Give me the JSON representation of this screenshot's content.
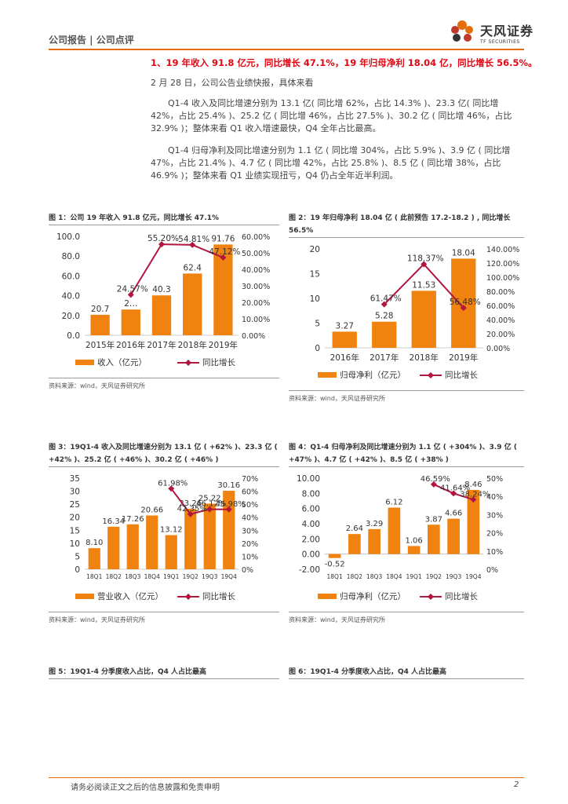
{
  "header": {
    "section": "公司报告 | 公司点评",
    "brand_cn": "天风证券",
    "brand_en": "TF SECURITIES",
    "accent": "#e46c0a"
  },
  "headline": "1、19 年收入 91.8 亿元，同比增长 47.1%，19 年归母净利 18.04 亿，同比增长 56.5%。",
  "paragraphs": [
    "2 月 28 日，公司公告业绩快报，具体来看",
    "Q1-4 收入及同比增速分别为 13.1 亿( 同比增 62%，占比 14.3% )、23.3 亿( 同比增 42%，占比 25.4% )、25.2 亿 ( 同比增 46%，占比 27.5% )、30.2 亿 ( 同比增 46%，占比 32.9% )；整体来看 Q1 收入增速最快，Q4 全年占比最高。",
    "Q1-4 归母净利及同比增速分别为 1.1 亿 ( 同比增 304%，占比 5.9% )、3.9 亿 ( 同比增 47%，占比 21.4% )、4.7 亿 ( 同比增 42%，占比 25.8% )、8.5 亿 ( 同比增 38%，占比 46.9% )；整体来看 Q1 业绩实现扭亏，Q4 仍占全年近半利润。"
  ],
  "figures": [
    {
      "title": "图 1：公司 19 年收入 91.8 亿元，同比增长 47.1%",
      "source": "资料来源：wind，天风证券研究所"
    },
    {
      "title": "图 2：19 年归母净利 18.04 亿 ( 此前预告 17.2-18.2 ) , 同比增长 56.5%",
      "source": "资料来源：wind，天风证券研究所"
    },
    {
      "title": "图 3：19Q1-4 收入及同比增速分别为 13.1 亿 ( +62% )、23.3 亿 ( +42% )、25.2 亿 ( +46% )、30.2 亿 ( +46% )",
      "source": "资料来源：wind，天风证券研究所"
    },
    {
      "title": "图 4：Q1-4 归母净利及同比增速分别为 1.1 亿 ( +304% )、3.9 亿 ( +47% )、4.7 亿 ( +42% )、8.5 亿 ( +38% )",
      "source": "资料来源：wind，天风证券研究所"
    },
    {
      "title": "图 5：19Q1-4 分季度收入占比，Q4 人占比最高",
      "source": ""
    },
    {
      "title": "图 6：19Q1-4 分季度收入占比，Q4 人占比最高",
      "source": ""
    }
  ],
  "chart_data": [
    {
      "type": "bar",
      "categories": [
        "2015年",
        "2016年",
        "2017年",
        "2018年",
        "2019年"
      ],
      "series": [
        {
          "name": "收入（亿元）",
          "axis": "left",
          "kind": "bar",
          "values": [
            20.7,
            26.0,
            40.3,
            62.4,
            91.76
          ],
          "labels": [
            "20.7",
            "2…",
            "40.3",
            "62.4",
            "91.76"
          ]
        },
        {
          "name": "同比增长",
          "axis": "right",
          "kind": "line",
          "values": [
            null,
            24.57,
            55.2,
            54.81,
            47.12
          ],
          "labels": [
            "",
            "24.57%",
            "55.20%",
            "54.81%",
            "47.12%"
          ]
        }
      ],
      "ylim_left": [
        0,
        100
      ],
      "yticks_left": [
        "0.0",
        "20.0",
        "40.0",
        "60.0",
        "80.0",
        "100.0"
      ],
      "ylim_right": [
        0,
        60
      ],
      "yticks_right": [
        "0.00%",
        "10.00%",
        "20.00%",
        "30.00%",
        "40.00%",
        "50.00%",
        "60.00%"
      ],
      "bar_color": "#f0820f",
      "line_color": "#b0163e",
      "legend": [
        "收入（亿元）",
        "同比增长"
      ]
    },
    {
      "type": "bar",
      "categories": [
        "2016年",
        "2017年",
        "2018年",
        "2019年"
      ],
      "series": [
        {
          "name": "归母净利（亿元）",
          "axis": "left",
          "kind": "bar",
          "values": [
            3.27,
            5.28,
            11.53,
            18.04
          ],
          "labels": [
            "3.27",
            "5.28",
            "11.53",
            "18.04"
          ]
        },
        {
          "name": "同比增长",
          "axis": "right",
          "kind": "line",
          "values": [
            null,
            61.47,
            118.37,
            56.48
          ],
          "labels": [
            "",
            "61.47%",
            "118.37%",
            "56.48%"
          ]
        }
      ],
      "ylim_left": [
        0,
        20
      ],
      "yticks_left": [
        "0",
        "5",
        "10",
        "15",
        "20"
      ],
      "ylim_right": [
        0,
        140
      ],
      "yticks_right": [
        "0.00%",
        "20.00%",
        "40.00%",
        "60.00%",
        "80.00%",
        "100.00%",
        "120.00%",
        "140.00%"
      ],
      "bar_color": "#f0820f",
      "line_color": "#b0163e",
      "legend": [
        "归母净利（亿元）",
        "同比增长"
      ]
    },
    {
      "type": "bar",
      "categories": [
        "18Q1",
        "18Q2",
        "18Q3",
        "18Q4",
        "19Q1",
        "19Q2",
        "19Q3",
        "19Q4"
      ],
      "series": [
        {
          "name": "营业收入（亿元）",
          "axis": "left",
          "kind": "bar",
          "values": [
            8.1,
            16.34,
            17.26,
            20.66,
            13.12,
            23.26,
            25.22,
            30.16
          ],
          "labels": [
            "8.10",
            "16.34",
            "17.26",
            "20.66",
            "13.12",
            "23.26",
            "25.22",
            "30.16"
          ]
        },
        {
          "name": "同比增长",
          "axis": "right",
          "kind": "line",
          "values": [
            null,
            null,
            null,
            null,
            61.98,
            42.35,
            46.12,
            45.98
          ],
          "labels": [
            "",
            "",
            "",
            "",
            "61.98%",
            "42.35%",
            "46.12%",
            "45.98%"
          ]
        }
      ],
      "ylim_left": [
        0,
        35
      ],
      "yticks_left": [
        "0",
        "5",
        "10",
        "15",
        "20",
        "25",
        "30",
        "35"
      ],
      "ylim_right": [
        0,
        70
      ],
      "yticks_right": [
        "0%",
        "10%",
        "20%",
        "30%",
        "40%",
        "50%",
        "60%",
        "70%"
      ],
      "bar_color": "#f0820f",
      "line_color": "#b0163e",
      "legend": [
        "营业收入（亿元）",
        "同比增长"
      ]
    },
    {
      "type": "bar",
      "categories": [
        "18Q1",
        "18Q2",
        "18Q3",
        "18Q4",
        "19Q1",
        "19Q2",
        "19Q3",
        "19Q4"
      ],
      "series": [
        {
          "name": "归母净利（亿元）",
          "axis": "left",
          "kind": "bar",
          "values": [
            -0.52,
            2.64,
            3.29,
            6.12,
            1.06,
            3.87,
            4.66,
            8.46
          ],
          "labels": [
            "-0.52",
            "2.64",
            "3.29",
            "6.12",
            "1.06",
            "3.87",
            "4.66",
            "8.46"
          ]
        },
        {
          "name": "同比增长",
          "axis": "right",
          "kind": "line",
          "values": [
            null,
            null,
            null,
            null,
            null,
            46.59,
            41.64,
            38.24
          ],
          "labels": [
            "",
            "",
            "",
            "",
            "",
            "46.59%",
            "41.64%",
            "38.24%"
          ]
        }
      ],
      "ylim_left": [
        -2,
        10
      ],
      "yticks_left": [
        "-2.00",
        "0.00",
        "2.00",
        "4.00",
        "6.00",
        "8.00",
        "10.00"
      ],
      "ylim_right": [
        0,
        50
      ],
      "yticks_right": [
        "0%",
        "10%",
        "20%",
        "30%",
        "40%",
        "50%"
      ],
      "bar_color": "#f0820f",
      "line_color": "#b0163e",
      "legend": [
        "归母净利（亿元）",
        "同比增长"
      ]
    }
  ],
  "footer": {
    "disclaimer": "请务必阅读正文之后的信息披露和免责申明",
    "page": "2"
  }
}
